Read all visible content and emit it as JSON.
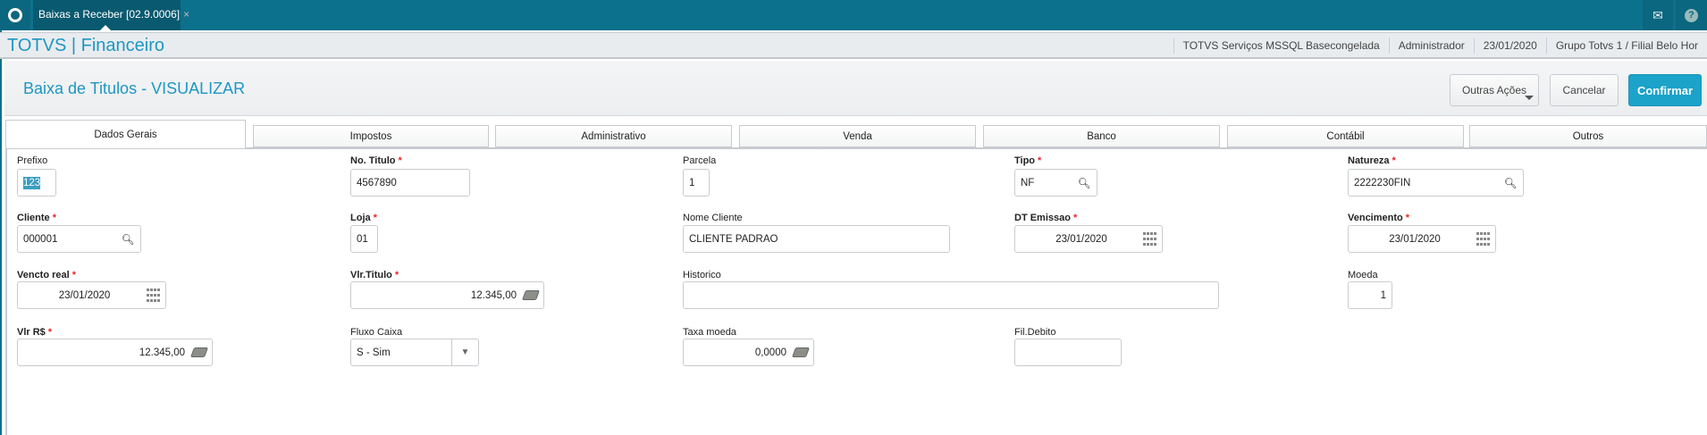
{
  "topbar": {
    "app_tab": "Baixas a Receber [02.9.0006]",
    "close_glyph": "×",
    "icons": [
      "totvs-logo-icon",
      "mail-icon",
      "help-icon"
    ]
  },
  "header": {
    "brand": "TOTVS | Financeiro",
    "environment": "TOTVS Serviços MSSQL Basecongelada",
    "user": "Administrador",
    "date": "23/01/2020",
    "branch": "Grupo Totvs 1 / Filial Belo Hor"
  },
  "page": {
    "title": "Baixa de Titulos - VISUALIZAR",
    "buttons": {
      "more": "Outras Ações",
      "cancel": "Cancelar",
      "confirm": "Confirmar"
    }
  },
  "tabs": [
    {
      "label": "Dados Gerais",
      "active": true
    },
    {
      "label": "Impostos"
    },
    {
      "label": "Administrativo"
    },
    {
      "label": "Venda"
    },
    {
      "label": "Banco"
    },
    {
      "label": "Contábil"
    },
    {
      "label": "Outros"
    }
  ],
  "fields": {
    "prefixo": {
      "label": "Prefixo",
      "value": "123"
    },
    "no_titulo": {
      "label": "No. Titulo",
      "value": "4567890",
      "required": true
    },
    "parcela": {
      "label": "Parcela",
      "value": "1"
    },
    "tipo": {
      "label": "Tipo",
      "value": "NF",
      "required": true
    },
    "natureza": {
      "label": "Natureza",
      "value": "2222230FIN",
      "required": true
    },
    "cliente": {
      "label": "Cliente",
      "value": "000001",
      "required": true
    },
    "loja": {
      "label": "Loja",
      "value": "01",
      "required": true
    },
    "nome_cliente": {
      "label": "Nome Cliente",
      "value": "CLIENTE PADRAO"
    },
    "dt_emissao": {
      "label": "DT Emissao",
      "value": "23/01/2020",
      "required": true
    },
    "vencimento": {
      "label": "Vencimento",
      "value": "23/01/2020",
      "required": true
    },
    "vencto_real": {
      "label": "Vencto real",
      "value": "23/01/2020",
      "required": true
    },
    "vlr_titulo": {
      "label": "Vlr.Titulo",
      "value": "12.345,00",
      "required": true
    },
    "historico": {
      "label": "Historico",
      "value": ""
    },
    "moeda": {
      "label": "Moeda",
      "value": "1"
    },
    "vlr_rs": {
      "label": "Vlr R$",
      "value": "12.345,00",
      "required": true
    },
    "fluxo_caixa": {
      "label": "Fluxo Caixa",
      "value": "S - Sim"
    },
    "taxa_moeda": {
      "label": "Taxa moeda",
      "value": "0,0000"
    },
    "fil_debito": {
      "label": "Fil.Debito",
      "value": ""
    }
  },
  "required_mark": "*",
  "colors": {
    "topbar": "#0c718d",
    "brand": "#1d97c3",
    "primary_button": "#1ba3c9",
    "required": "#e22222"
  }
}
